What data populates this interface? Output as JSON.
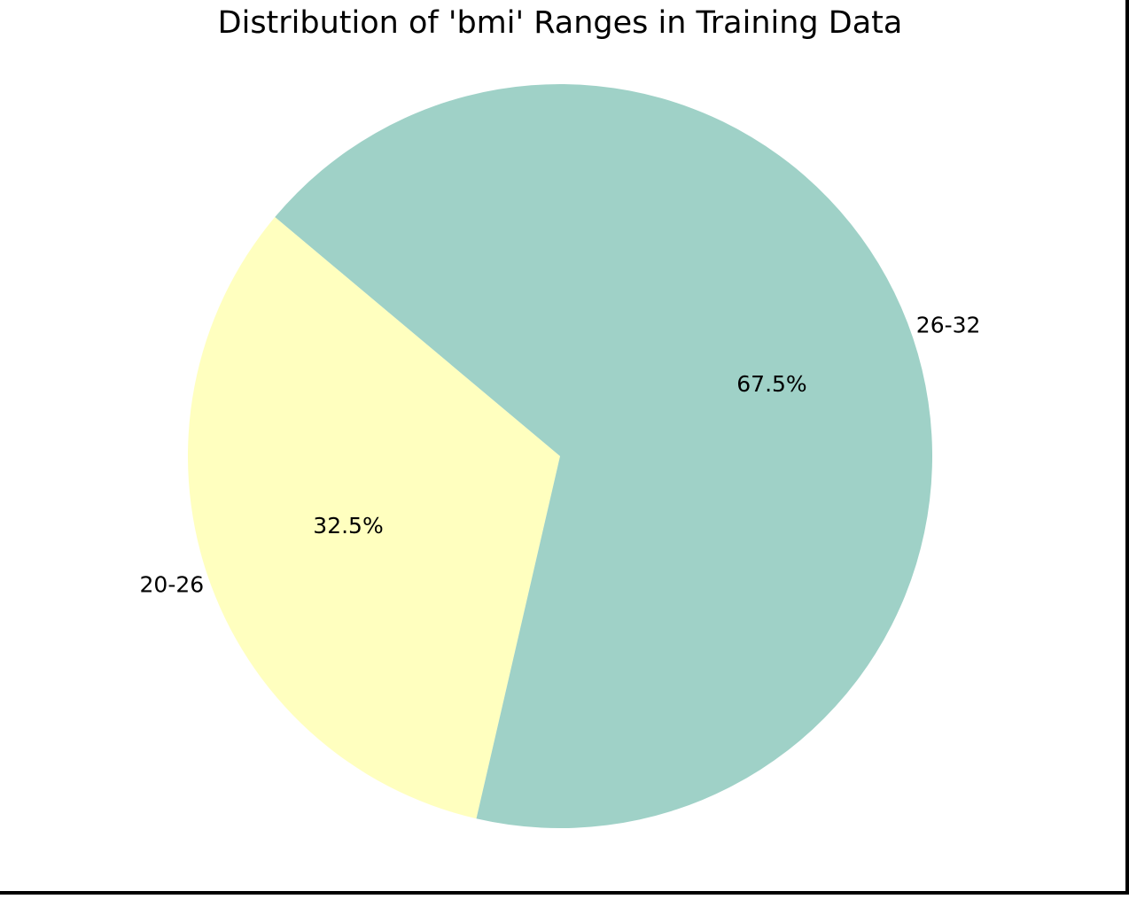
{
  "chart_data": {
    "type": "pie",
    "title": "Distribution of 'bmi' Ranges in Training Data",
    "categories": [
      "20-26",
      "26-32"
    ],
    "values": [
      32.5,
      67.5
    ],
    "value_labels": [
      "32.5%",
      "67.5%"
    ],
    "colors": [
      "#ffffbf",
      "#9fd1c7"
    ],
    "legend": "none",
    "grid": false
  }
}
